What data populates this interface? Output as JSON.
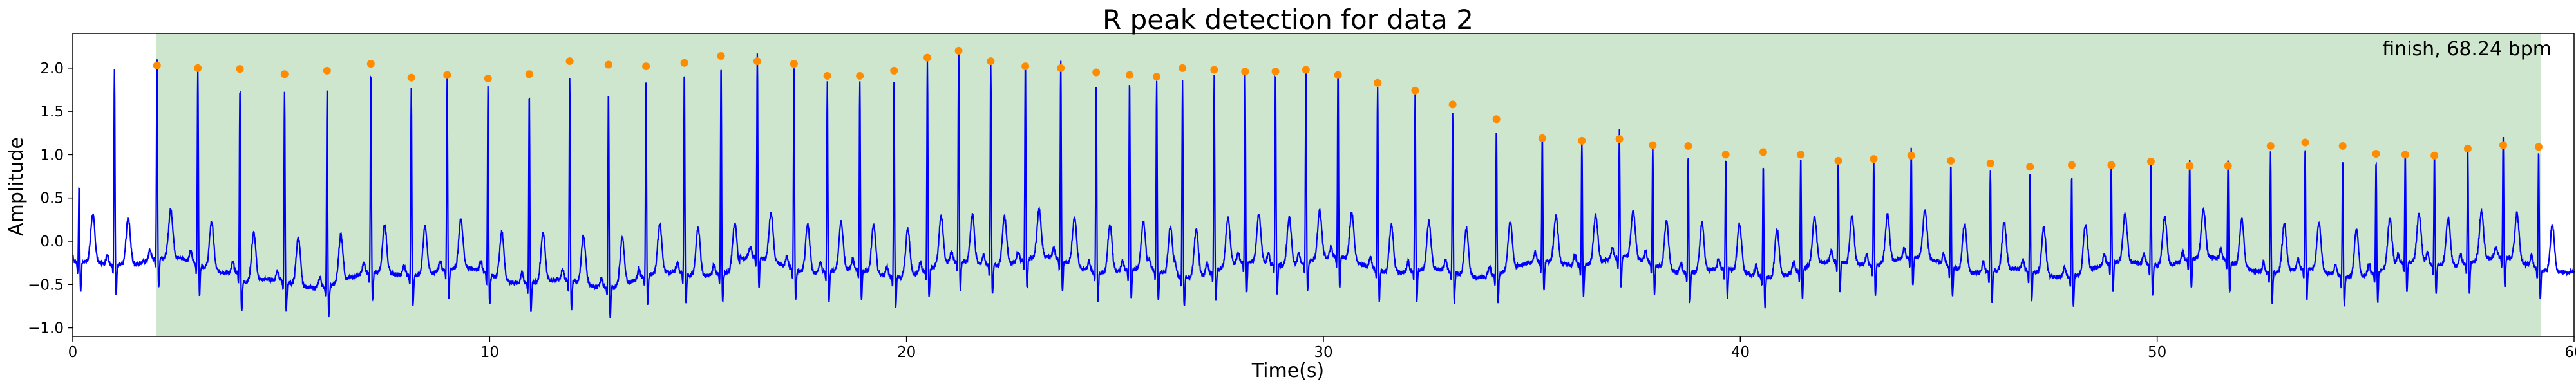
{
  "chart_data": {
    "type": "line",
    "title": "R peak detection for data 2",
    "xlabel": "Time(s)",
    "ylabel": "Amplitude",
    "xlim": [
      0,
      60
    ],
    "ylim": [
      -1.1,
      2.4
    ],
    "xticks": [
      0,
      10,
      20,
      30,
      40,
      50,
      60
    ],
    "yticks": [
      -1.0,
      -0.5,
      0.0,
      0.5,
      1.0,
      1.5,
      2.0
    ],
    "ytick_labels": [
      "−1.0",
      "−0.5",
      "0.0",
      "0.5",
      "1.0",
      "1.5",
      "2.0"
    ],
    "grid": false,
    "annotation": "finish, 68.24 bpm",
    "shaded_region": {
      "x_start": 2.0,
      "x_end": 59.2,
      "color": "#cde6cd"
    },
    "series": [
      {
        "color": "#0000ff",
        "style": "line",
        "baseline": -0.3,
        "pre_region_peaks": [
          {
            "x": 0.15,
            "y": 0.58
          },
          {
            "x": 1.0,
            "y": 2.0
          }
        ]
      },
      {
        "color": "#ff8c00",
        "style": "scatter",
        "x": [
          2.02,
          3.0,
          4.01,
          5.08,
          6.1,
          7.15,
          8.12,
          8.98,
          9.96,
          10.95,
          11.92,
          12.85,
          13.75,
          14.67,
          15.55,
          16.42,
          17.3,
          18.1,
          18.88,
          19.7,
          20.5,
          21.25,
          22.02,
          22.85,
          23.7,
          24.55,
          25.35,
          26.0,
          26.62,
          27.38,
          28.12,
          28.85,
          29.58,
          30.35,
          31.3,
          32.2,
          33.1,
          34.15,
          35.25,
          36.2,
          37.1,
          37.9,
          38.75,
          39.65,
          40.55,
          41.45,
          42.35,
          43.2,
          44.1,
          45.05,
          46.0,
          46.95,
          47.95,
          48.9,
          49.85,
          50.78,
          51.7,
          52.72,
          53.55,
          54.45,
          55.25,
          55.95,
          56.65,
          57.45,
          58.3,
          59.15
        ],
        "y": [
          2.03,
          2.0,
          1.99,
          1.93,
          1.97,
          2.05,
          1.89,
          1.92,
          1.88,
          1.93,
          2.08,
          2.04,
          2.02,
          2.06,
          2.14,
          2.08,
          2.05,
          1.91,
          1.91,
          1.97,
          2.12,
          2.2,
          2.08,
          2.02,
          2.0,
          1.95,
          1.92,
          1.9,
          2.0,
          1.98,
          1.96,
          1.96,
          1.98,
          1.92,
          1.83,
          1.74,
          1.58,
          1.41,
          1.19,
          1.16,
          1.18,
          1.11,
          1.1,
          1.0,
          1.03,
          1.0,
          0.93,
          0.95,
          0.99,
          0.93,
          0.9,
          0.86,
          0.88,
          0.88,
          0.92,
          0.87,
          0.87,
          1.1,
          1.14,
          1.1,
          1.01,
          1.0,
          0.99,
          1.07,
          1.11,
          1.09
        ]
      }
    ]
  }
}
